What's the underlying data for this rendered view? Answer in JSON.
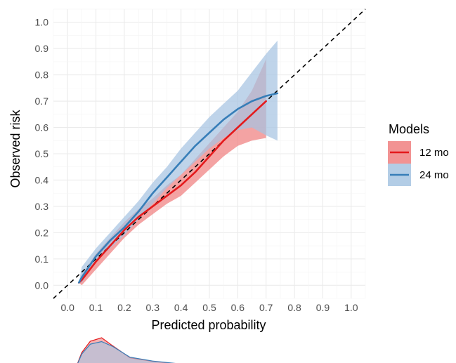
{
  "chart_data": {
    "type": "line",
    "title": "",
    "xlabel": "Predicted probability",
    "ylabel": "Observed risk",
    "xlim": [
      -0.05,
      1.05
    ],
    "ylim": [
      -0.05,
      1.05
    ],
    "x_ticks": [
      "0.0",
      "0.1",
      "0.2",
      "0.3",
      "0.4",
      "0.5",
      "0.6",
      "0.7",
      "0.8",
      "0.9",
      "1.0"
    ],
    "y_ticks": [
      "0.0",
      "0.1",
      "0.2",
      "0.3",
      "0.4",
      "0.5",
      "0.6",
      "0.7",
      "0.8",
      "0.9",
      "1.0"
    ],
    "grid": true,
    "reference_line": {
      "type": "dashed",
      "slope": 1,
      "intercept": 0,
      "color": "#000000"
    },
    "legend": {
      "title": "Models",
      "placement": "right"
    },
    "series": [
      {
        "name": "12 mo",
        "color": "#e41a1c",
        "fill": "#f08080",
        "x": [
          0.04,
          0.05,
          0.1,
          0.15,
          0.2,
          0.25,
          0.3,
          0.35,
          0.4,
          0.45,
          0.5,
          0.55,
          0.6,
          0.65,
          0.7
        ],
        "y": [
          0.01,
          0.02,
          0.09,
          0.15,
          0.21,
          0.26,
          0.3,
          0.34,
          0.38,
          0.43,
          0.49,
          0.55,
          0.6,
          0.65,
          0.7
        ],
        "lower": [
          0.01,
          0.0,
          0.06,
          0.12,
          0.18,
          0.23,
          0.27,
          0.31,
          0.34,
          0.39,
          0.44,
          0.49,
          0.53,
          0.55,
          0.56
        ],
        "upper": [
          0.01,
          0.04,
          0.12,
          0.18,
          0.24,
          0.29,
          0.33,
          0.38,
          0.42,
          0.48,
          0.54,
          0.6,
          0.66,
          0.74,
          0.86
        ]
      },
      {
        "name": "24 mo",
        "color": "#377eb8",
        "fill": "#a6c4e2",
        "x": [
          0.04,
          0.05,
          0.1,
          0.15,
          0.2,
          0.25,
          0.3,
          0.35,
          0.4,
          0.45,
          0.5,
          0.55,
          0.6,
          0.65,
          0.7,
          0.74
        ],
        "y": [
          0.01,
          0.03,
          0.11,
          0.17,
          0.22,
          0.28,
          0.35,
          0.41,
          0.47,
          0.53,
          0.58,
          0.63,
          0.67,
          0.7,
          0.72,
          0.73
        ],
        "lower": [
          0.01,
          0.01,
          0.09,
          0.14,
          0.19,
          0.25,
          0.31,
          0.37,
          0.42,
          0.47,
          0.52,
          0.56,
          0.59,
          0.6,
          0.57,
          0.55
        ],
        "upper": [
          0.01,
          0.07,
          0.14,
          0.2,
          0.26,
          0.32,
          0.39,
          0.45,
          0.52,
          0.58,
          0.64,
          0.69,
          0.74,
          0.81,
          0.88,
          0.93
        ]
      }
    ],
    "marginal_density": {
      "12 mo": {
        "x": [
          0.03,
          0.05,
          0.08,
          0.12,
          0.16,
          0.22,
          0.3,
          0.4,
          0.5,
          0.62,
          0.74
        ],
        "density": [
          0.0,
          0.5,
          0.88,
          1.0,
          0.72,
          0.32,
          0.2,
          0.1,
          0.03,
          0.01,
          0.0
        ]
      },
      "24 mo": {
        "x": [
          0.03,
          0.05,
          0.08,
          0.12,
          0.16,
          0.22,
          0.3,
          0.4,
          0.5,
          0.62,
          0.74
        ],
        "density": [
          0.0,
          0.45,
          0.78,
          0.87,
          0.7,
          0.34,
          0.21,
          0.11,
          0.04,
          0.01,
          0.0
        ]
      }
    }
  }
}
